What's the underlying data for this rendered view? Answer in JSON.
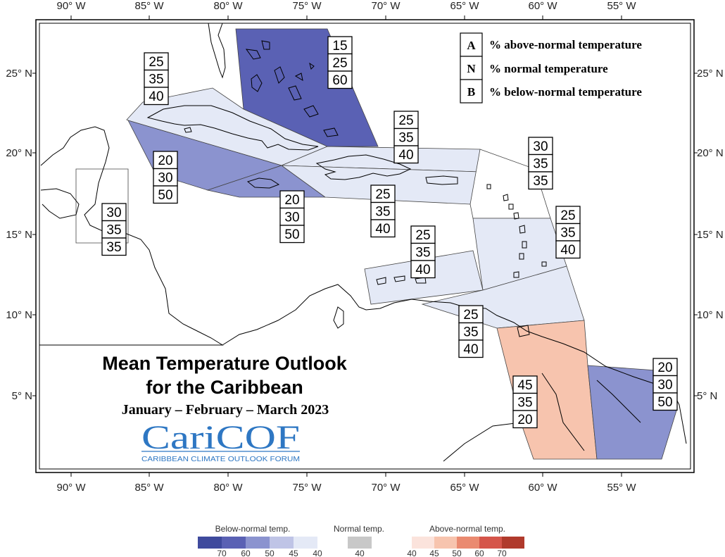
{
  "map": {
    "lon_ticks": [
      "90° W",
      "85° W",
      "80° W",
      "75° W",
      "70° W",
      "65° W",
      "60° W",
      "55° W"
    ],
    "lat_ticks": [
      "25° N",
      "20° N",
      "15° N",
      "10° N",
      "5° N"
    ]
  },
  "key": {
    "items": [
      {
        "letter": "A",
        "text": "% above-normal temperature"
      },
      {
        "letter": "N",
        "text": "% normal temperature"
      },
      {
        "letter": "B",
        "text": "% below-normal temperature"
      }
    ]
  },
  "title": {
    "line1": "Mean Temperature Outlook",
    "line2": "for the Caribbean",
    "period": "January – February – March 2023"
  },
  "logo": {
    "name": "CariCOF",
    "subtitle": "CARIBBEAN CLIMATE OUTLOOK FORUM"
  },
  "regions": [
    {
      "name": "bahamas",
      "color": "#5a61b4",
      "probs": [
        "15",
        "25",
        "60"
      ]
    },
    {
      "name": "cuba-north",
      "color": "#e4e9f6",
      "probs": [
        "25",
        "35",
        "40"
      ]
    },
    {
      "name": "cuba-south",
      "color": "#8b93cf",
      "probs": [
        "20",
        "30",
        "50"
      ]
    },
    {
      "name": "jamaica",
      "color": "#8b93cf",
      "probs": [
        "20",
        "30",
        "50"
      ]
    },
    {
      "name": "hispaniola-north",
      "color": "#e4e9f6",
      "probs": [
        "25",
        "35",
        "40"
      ]
    },
    {
      "name": "hispaniola-south",
      "color": "#e4e9f6",
      "probs": [
        "25",
        "35",
        "40"
      ]
    },
    {
      "name": "belize",
      "color": "#ffffff",
      "probs": [
        "30",
        "35",
        "35"
      ]
    },
    {
      "name": "northern-leewards",
      "color": "#ffffff",
      "probs": [
        "30",
        "35",
        "35"
      ]
    },
    {
      "name": "windwards",
      "color": "#e4e9f6",
      "probs": [
        "25",
        "35",
        "40"
      ]
    },
    {
      "name": "abc-islands",
      "color": "#e4e9f6",
      "probs": [
        "25",
        "35",
        "40"
      ]
    },
    {
      "name": "trinidad",
      "color": "#e4e9f6",
      "probs": [
        "25",
        "35",
        "40"
      ]
    },
    {
      "name": "guyana",
      "color": "#f7c4ae",
      "probs": [
        "45",
        "35",
        "20"
      ]
    },
    {
      "name": "french-guiana",
      "color": "#8b93cf",
      "probs": [
        "20",
        "30",
        "50"
      ]
    }
  ],
  "scale": {
    "below": {
      "title": "Below-normal temp.",
      "colors": [
        "#3f4a9d",
        "#5a61b4",
        "#8b93cf",
        "#bfc4e6",
        "#e4e9f6"
      ],
      "ticks": [
        "70",
        "60",
        "50",
        "45",
        "40"
      ]
    },
    "normal": {
      "title": "Normal temp.",
      "colors": [
        "#c8c8c8"
      ],
      "ticks": [
        "40"
      ]
    },
    "above": {
      "title": "Above-normal temp.",
      "colors": [
        "#fbe3dc",
        "#f7c4ae",
        "#ea8a70",
        "#d5554a",
        "#b03a2c"
      ],
      "ticks": [
        "40",
        "45",
        "50",
        "60",
        "70"
      ]
    }
  }
}
